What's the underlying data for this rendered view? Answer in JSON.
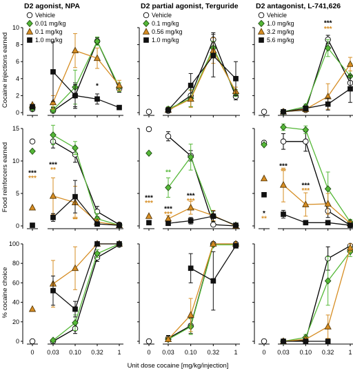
{
  "colors": {
    "Vehicle": "#000000",
    "low": "#55b838",
    "mid": "#d68d23",
    "high": "#111111"
  },
  "chart_data": {
    "type": "line",
    "xlabel": "Unit dose cocaine [mg/kg/injection]",
    "x_ticks": [
      "0",
      "0.03",
      "0.10",
      "0.32",
      "1"
    ],
    "columns": [
      {
        "title": "D2 agonist, NPA",
        "legend": [
          "Vehicle",
          "0.01 mg/kg",
          "0.1 mg/kg",
          "1.0 mg/kg"
        ]
      },
      {
        "title": "D2 partial agonist, Terguride",
        "legend": [
          "Vehicle",
          "0.1 mg/kg",
          "0.56 mg/kg",
          "1.0 mg/kg"
        ]
      },
      {
        "title": "D2 antagonist, L-741,626",
        "legend": [
          "Vehicle",
          "1.0 mg/kg",
          "3.2 mg/kg",
          "5.6 mg/kg"
        ]
      }
    ],
    "rows": [
      {
        "ylabel": "Cocaine injections earned",
        "ylim": [
          0,
          10
        ],
        "yticks": [
          "0",
          "2",
          "4",
          "6",
          "8",
          "10"
        ]
      },
      {
        "ylabel": "Food reinforcers earned",
        "ylim": [
          0,
          15
        ],
        "yticks": [
          "0",
          "5",
          "10",
          "15"
        ]
      },
      {
        "ylabel": "% cocaine choice",
        "ylim": [
          0,
          100
        ],
        "yticks": [
          "0",
          "20",
          "40",
          "60",
          "80",
          "100"
        ]
      }
    ],
    "panels": [
      {
        "row": 0,
        "col": 0,
        "series": [
          {
            "name": "Vehicle",
            "base": 0.4,
            "values": [
              0.2,
              2.0,
              8.4,
              2.8
            ],
            "errors": [
              0.4,
              1.5,
              0.4,
              0.4
            ]
          },
          {
            "name": "0.01 mg/kg",
            "base": 0.5,
            "values": [
              0.3,
              3.0,
              8.4,
              3.0
            ],
            "errors": [
              0.4,
              2.0,
              0.5,
              0.5
            ]
          },
          {
            "name": "0.1 mg/kg",
            "base": 0.9,
            "values": [
              1.2,
              7.3,
              6.4,
              3.2
            ],
            "errors": [
              0.8,
              2.0,
              1.2,
              0.6
            ]
          },
          {
            "name": "1.0 mg/kg",
            "base": 0.7,
            "values": [
              4.8,
              2.0,
              1.6,
              0.6
            ],
            "errors": [
              3.5,
              1.3,
              0.6,
              0.2
            ]
          }
        ],
        "annotations": [
          {
            "x": 3,
            "y": 2.9,
            "text": "*",
            "color": "Vehicle"
          }
        ]
      },
      {
        "row": 0,
        "col": 1,
        "series": [
          {
            "name": "Vehicle",
            "base": 0.1,
            "values": [
              0.2,
              2.0,
              8.6,
              1.9
            ],
            "errors": [
              0.3,
              1.3,
              0.8,
              0.4
            ]
          },
          {
            "name": "0.1 mg/kg",
            "base": null,
            "values": [
              0.4,
              1.7,
              7.6,
              2.3
            ],
            "errors": [
              0.3,
              1.0,
              0.8,
              0.4
            ]
          },
          {
            "name": "0.56 mg/kg",
            "base": null,
            "values": [
              0.3,
              1.6,
              7.3,
              2.5
            ],
            "errors": [
              0.3,
              1.0,
              1.5,
              0.5
            ]
          },
          {
            "name": "1.0 mg/kg",
            "base": null,
            "values": [
              0.3,
              3.2,
              6.7,
              4.0
            ],
            "errors": [
              0.3,
              1.4,
              2.5,
              2.0
            ]
          }
        ],
        "annotations": []
      },
      {
        "row": 0,
        "col": 2,
        "series": [
          {
            "name": "Vehicle",
            "base": 0.1,
            "values": [
              0.1,
              0.3,
              8.6,
              3.5
            ],
            "errors": [
              0.1,
              0.2,
              0.5,
              0.7
            ]
          },
          {
            "name": "1.0 mg/kg",
            "base": null,
            "values": [
              0.1,
              0.7,
              7.6,
              4.3
            ],
            "errors": [
              0.1,
              0.3,
              1.0,
              1.5
            ]
          },
          {
            "name": "3.2 mg/kg",
            "base": null,
            "values": [
              0.1,
              0.4,
              1.9,
              5.7
            ],
            "errors": [
              0.1,
              0.3,
              1.5,
              0.8
            ]
          },
          {
            "name": "5.6 mg/kg",
            "base": null,
            "values": [
              0.1,
              0.5,
              1.0,
              2.8
            ],
            "errors": [
              0.1,
              0.3,
              0.7,
              1.6
            ]
          }
        ],
        "annotations": [
          {
            "x": 3,
            "y": 10.3,
            "text": "***",
            "color": "Vehicle"
          },
          {
            "x": 3,
            "y": 9.6,
            "text": "***",
            "color": "mid"
          }
        ]
      },
      {
        "row": 1,
        "col": 0,
        "series": [
          {
            "name": "Vehicle",
            "base": 13.0,
            "values": [
              13.0,
              11.0,
              2.2,
              0.2
            ],
            "errors": [
              1.0,
              1.2,
              0.8,
              0.2
            ]
          },
          {
            "name": "0.01 mg/kg",
            "base": 11.5,
            "values": [
              14.0,
              12.0,
              1.1,
              0.1
            ],
            "errors": [
              1.5,
              1.0,
              0.8,
              0.1
            ]
          },
          {
            "name": "0.1 mg/kg",
            "base": 2.8,
            "values": [
              4.6,
              3.6,
              0.6,
              0.1
            ],
            "errors": [
              2.8,
              2.5,
              0.4,
              0.1
            ]
          },
          {
            "name": "1.0 mg/kg",
            "base": 0.1,
            "values": [
              1.3,
              4.5,
              0.3,
              0.1
            ],
            "errors": [
              0.6,
              2.5,
              0.3,
              0.1
            ]
          }
        ],
        "annotations": [
          {
            "x": 0,
            "y": 7.8,
            "text": "***",
            "color": "Vehicle"
          },
          {
            "x": 0,
            "y": 7.0,
            "text": "***",
            "color": "mid"
          },
          {
            "x": 1,
            "y": 9.1,
            "text": "***",
            "color": "Vehicle"
          },
          {
            "x": 1,
            "y": 8.3,
            "text": "**",
            "color": "mid"
          },
          {
            "x": 2,
            "y": 0.7,
            "text": "**",
            "color": "mid"
          }
        ]
      },
      {
        "row": 1,
        "col": 1,
        "series": [
          {
            "name": "Vehicle",
            "base": 14.9,
            "values": [
              13.8,
              10.8,
              0.2,
              0.0
            ],
            "errors": [
              0.7,
              0.8,
              0.2,
              0.1
            ]
          },
          {
            "name": "0.1 mg/kg",
            "base": 11.2,
            "values": [
              5.9,
              10.6,
              1.5,
              0.1
            ],
            "errors": [
              1.5,
              2.0,
              0.8,
              0.1
            ]
          },
          {
            "name": "0.56 mg/kg",
            "base": 1.5,
            "values": [
              1.1,
              2.8,
              1.6,
              0.0
            ],
            "errors": [
              0.5,
              1.0,
              0.8,
              0.1
            ]
          },
          {
            "name": "1.0 mg/kg",
            "base": 0.5,
            "values": [
              0.4,
              0.8,
              1.5,
              0.1
            ],
            "errors": [
              0.3,
              0.5,
              0.8,
              0.1
            ]
          }
        ],
        "annotations": [
          {
            "x": 0,
            "y": 4.0,
            "text": "***",
            "color": "Vehicle"
          },
          {
            "x": 0,
            "y": 3.2,
            "text": "***",
            "color": "mid"
          },
          {
            "x": 1,
            "y": 7.9,
            "text": "**",
            "color": "low"
          },
          {
            "x": 1,
            "y": 2.3,
            "text": "***",
            "color": "Vehicle"
          },
          {
            "x": 1,
            "y": 1.5,
            "text": "***",
            "color": "mid"
          },
          {
            "x": 2,
            "y": 4.3,
            "text": "***",
            "color": "Vehicle"
          },
          {
            "x": 2,
            "y": 3.5,
            "text": "***",
            "color": "mid"
          }
        ]
      },
      {
        "row": 1,
        "col": 2,
        "series": [
          {
            "name": "Vehicle",
            "base": 12.8,
            "values": [
              13.0,
              13.0,
              2.3,
              0.1
            ],
            "errors": [
              1.2,
              1.5,
              1.0,
              0.2
            ]
          },
          {
            "name": "1.0 mg/kg",
            "base": 12.5,
            "values": [
              15.2,
              14.8,
              5.7,
              0.6
            ],
            "errors": [
              0.5,
              0.6,
              2.6,
              0.4
            ]
          },
          {
            "name": "3.2 mg/kg",
            "base": 7.3,
            "values": [
              6.3,
              3.3,
              3.4,
              0.4
            ],
            "errors": [
              2.6,
              1.8,
              1.6,
              0.3
            ]
          },
          {
            "name": "5.6 mg/kg",
            "base": 4.8,
            "values": [
              1.8,
              0.5,
              0.5,
              0.1
            ],
            "errors": [
              0.6,
              0.3,
              0.3,
              0.1
            ]
          }
        ],
        "annotations": [
          {
            "x": 0,
            "y": 1.6,
            "text": "*",
            "color": "Vehicle"
          },
          {
            "x": 0,
            "y": 0.8,
            "text": "**",
            "color": "mid"
          },
          {
            "x": 1,
            "y": 8.9,
            "text": "***",
            "color": "Vehicle"
          },
          {
            "x": 1,
            "y": 8.1,
            "text": "**",
            "color": "mid"
          },
          {
            "x": 2,
            "y": 5.9,
            "text": "***",
            "color": "Vehicle"
          },
          {
            "x": 2,
            "y": 5.1,
            "text": "***",
            "color": "mid"
          }
        ]
      },
      {
        "row": 2,
        "col": 0,
        "series": [
          {
            "name": "Vehicle",
            "base": 0.0,
            "values": [
              0.0,
              13.0,
              86.0,
              99.0
            ],
            "errors": [
              1.0,
              5.0,
              4.0,
              1.0
            ]
          },
          {
            "name": "0.01 mg/kg",
            "base": null,
            "values": [
              1.0,
              19.0,
              90.0,
              100.0
            ],
            "errors": [
              1.0,
              8.0,
              4.0,
              1.0
            ]
          },
          {
            "name": "0.1 mg/kg",
            "base": 33.0,
            "values": [
              59.0,
              75.0,
              100.0,
              100.0
            ],
            "errors": [
              24.0,
              22.0,
              1.0,
              1.0
            ]
          },
          {
            "name": "1.0 mg/kg",
            "base": null,
            "values": [
              52.0,
              33.0,
              100.0,
              100.0
            ],
            "errors": [
              15.0,
              8.0,
              1.0,
              1.0
            ]
          }
        ],
        "annotations": []
      },
      {
        "row": 2,
        "col": 1,
        "series": [
          {
            "name": "Vehicle",
            "base": 0.0,
            "values": [
              3.0,
              16.0,
              100.0,
              100.0
            ],
            "errors": [
              3.0,
              8.0,
              1.0,
              1.0
            ]
          },
          {
            "name": "0.1 mg/kg",
            "base": null,
            "values": [
              2.0,
              15.0,
              99.0,
              99.0
            ],
            "errors": [
              2.0,
              8.0,
              1.0,
              1.0
            ]
          },
          {
            "name": "0.56 mg/kg",
            "base": null,
            "values": [
              2.0,
              27.0,
              100.0,
              100.0
            ],
            "errors": [
              2.0,
              17.0,
              1.0,
              1.0
            ]
          },
          {
            "name": "1.0 mg/kg",
            "base": null,
            "values": [
              null,
              75.0,
              62.0,
              98.0
            ],
            "errors": [
              0.0,
              15.0,
              30.0,
              2.0
            ]
          }
        ],
        "annotations": []
      },
      {
        "row": 2,
        "col": 2,
        "series": [
          {
            "name": "Vehicle",
            "base": 0.0,
            "values": [
              0.0,
              1.0,
              85.0,
              98.0
            ],
            "errors": [
              1.0,
              2.0,
              12.0,
              2.0
            ]
          },
          {
            "name": "1.0 mg/kg",
            "base": null,
            "values": [
              0.0,
              4.0,
              62.0,
              92.0
            ],
            "errors": [
              1.0,
              3.0,
              25.0,
              5.0
            ]
          },
          {
            "name": "3.2 mg/kg",
            "base": null,
            "values": [
              0.0,
              2.0,
              15.0,
              96.0
            ],
            "errors": [
              1.0,
              2.0,
              12.0,
              4.0
            ]
          },
          {
            "name": "5.6 mg/kg",
            "base": null,
            "values": [
              0.0,
              0.0,
              0.0,
              null
            ],
            "errors": [
              1.0,
              1.0,
              1.0,
              0.0
            ]
          }
        ],
        "annotations": []
      }
    ]
  }
}
